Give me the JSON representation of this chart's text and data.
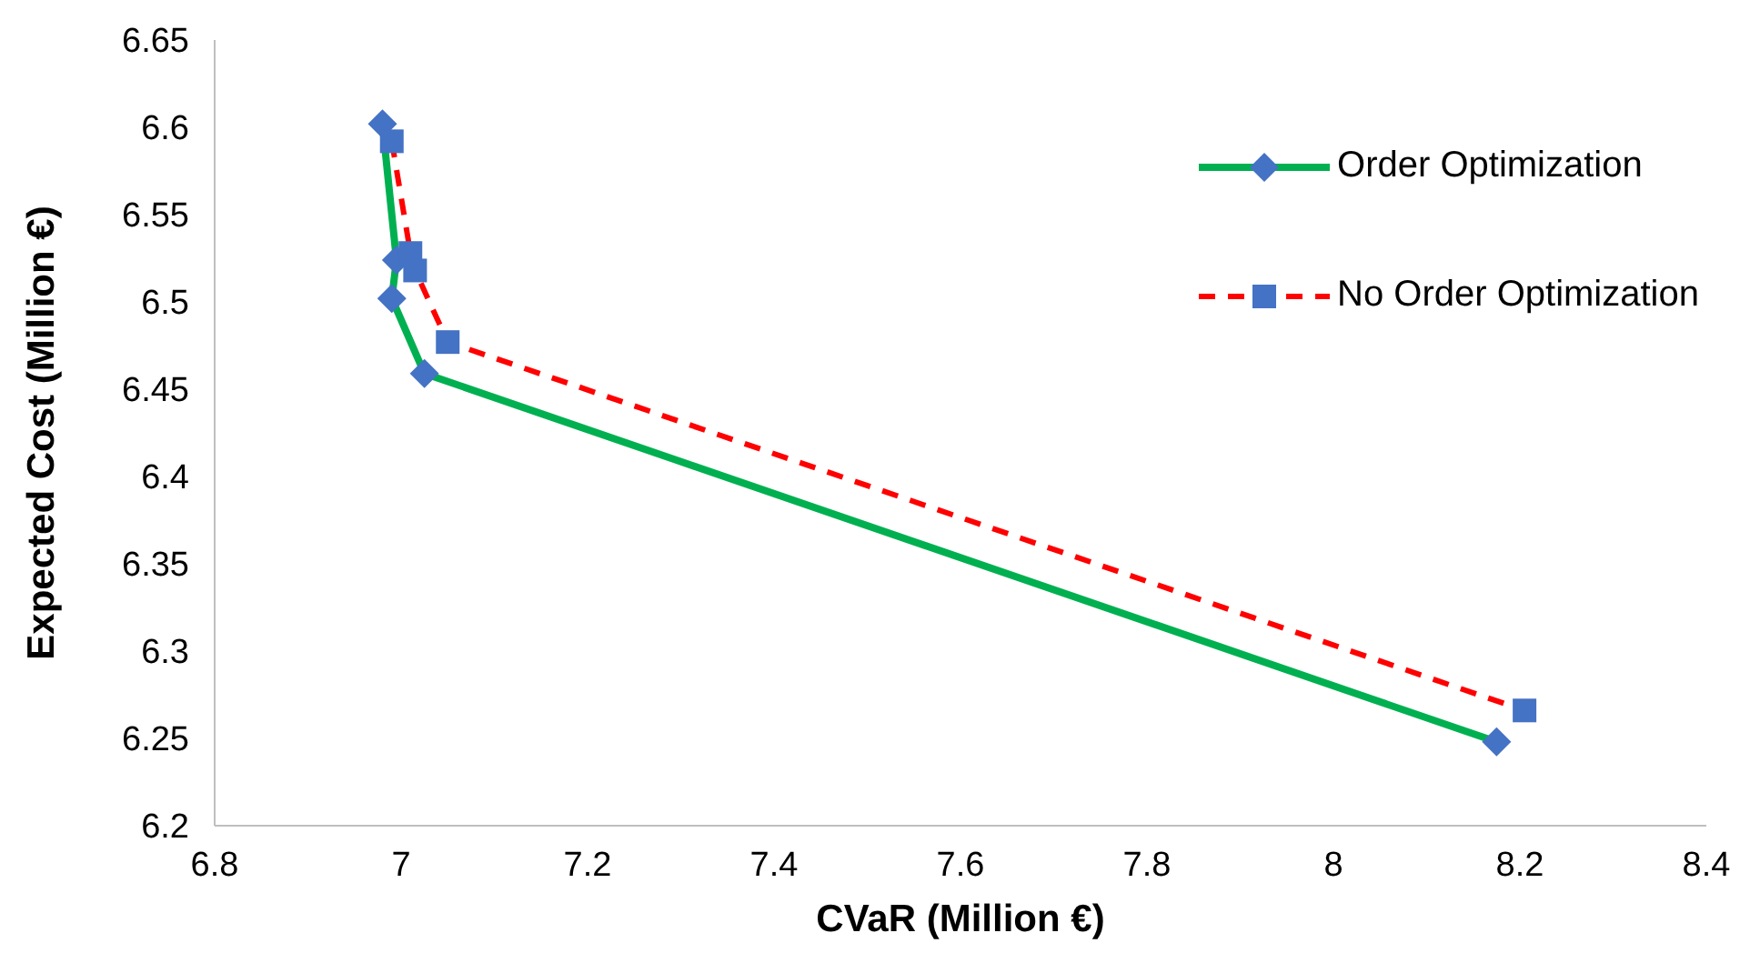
{
  "chart_data": {
    "type": "line",
    "xlabel": "CVaR (Million €)",
    "ylabel": "Expected Cost (Million €)",
    "xlim": [
      6.8,
      8.4
    ],
    "xticks": [
      6.8,
      7,
      7.2,
      7.4,
      7.6,
      7.8,
      8,
      8.2,
      8.4
    ],
    "ylim": [
      6.2,
      6.65
    ],
    "yticks": [
      6.2,
      6.25,
      6.3,
      6.35,
      6.4,
      6.45,
      6.5,
      6.55,
      6.6,
      6.65
    ],
    "grid": false,
    "legend": "top right",
    "series": [
      {
        "name": "Order Optimization",
        "color": "#00b050",
        "marker": "diamond",
        "line_style": "solid",
        "colors": [
          "#4472c4",
          "#4472c4",
          "#4472c4",
          "#4472c4",
          "#4472c4"
        ],
        "x": [
          6.98,
          6.995,
          6.99,
          7.025,
          8.175
        ],
        "values": [
          6.602,
          6.524,
          6.502,
          6.459,
          6.248
        ]
      },
      {
        "name": "No Order Optimization",
        "color": "#ff0000",
        "marker": "square",
        "line_style": "dashed",
        "colors": [
          "#4472c4",
          "#4472c4",
          "#4472c4",
          "#4472c4",
          "#4472c4"
        ],
        "x": [
          6.99,
          7.01,
          7.015,
          7.05,
          8.205
        ],
        "values": [
          6.592,
          6.528,
          6.518,
          6.477,
          6.266
        ]
      }
    ]
  }
}
